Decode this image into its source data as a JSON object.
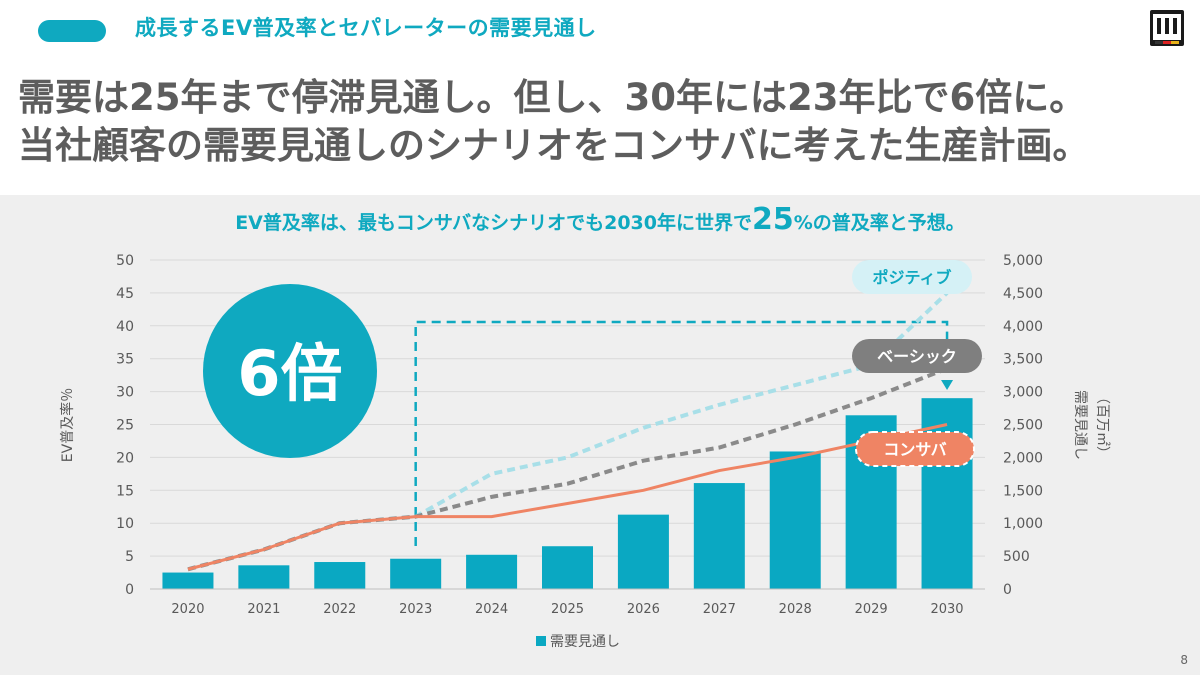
{
  "header": {
    "section_title": "成長するEV普及率とセパレーターの需要見通し",
    "headline_line1": "需要は25年まで停滞見通し。但し、30年には23年比で6倍に。",
    "headline_line2": "当社顧客の需要見通しのシナリオをコンサバに考えた生産計画。"
  },
  "panel": {
    "subtitle_pre": "EV普及率は、最もコンサバなシナリオでも2030年に世界で",
    "subtitle_big": "25",
    "subtitle_post": "%の普及率と予想。"
  },
  "page_number": "8",
  "colors": {
    "accent": "#0fa9c0",
    "bar": "#0aa8c2",
    "positive": "#a8dfe8",
    "basic": "#8a8a8a",
    "conservative": "#ef8464",
    "text": "#5d5d5d",
    "panel": "#efefef"
  },
  "chart_data": {
    "type": "bar",
    "categories": [
      "2020",
      "2021",
      "2022",
      "2023",
      "2024",
      "2025",
      "2026",
      "2027",
      "2028",
      "2029",
      "2030"
    ],
    "ylabel": "EV普及率％",
    "y2label_main": "需要見通し",
    "y2label_unit": "（百万㎡）",
    "ylim": [
      0,
      50
    ],
    "y2lim": [
      0,
      5000
    ],
    "y_ticks": [
      "0",
      "5",
      "10",
      "15",
      "20",
      "25",
      "30",
      "35",
      "40",
      "45",
      "50"
    ],
    "y2_ticks": [
      "0",
      "500",
      "1,000",
      "1,500",
      "2,000",
      "2,500",
      "3,000",
      "3,500",
      "4,000",
      "4,500",
      "5,000"
    ],
    "bars": {
      "name": "需要見通し",
      "values": [
        250,
        360,
        410,
        460,
        520,
        650,
        1130,
        1610,
        2090,
        2640,
        2900
      ]
    },
    "lines": [
      {
        "name": "ポジティブ",
        "style": "dashed",
        "values": [
          3,
          6,
          10,
          11,
          17.5,
          20,
          24.5,
          28,
          31,
          34,
          45
        ]
      },
      {
        "name": "ベーシック",
        "style": "dashed",
        "values": [
          3,
          6,
          10,
          11,
          14,
          16,
          19.5,
          21.5,
          25,
          29,
          33.5
        ]
      },
      {
        "name": "コンサバ",
        "style": "solid",
        "values": [
          3,
          6,
          10,
          11,
          11,
          13,
          15,
          18,
          20,
          22.5,
          25
        ]
      }
    ],
    "callout": "6倍",
    "legend": "需要見通し",
    "legend_position": "bottom",
    "grid": true
  }
}
